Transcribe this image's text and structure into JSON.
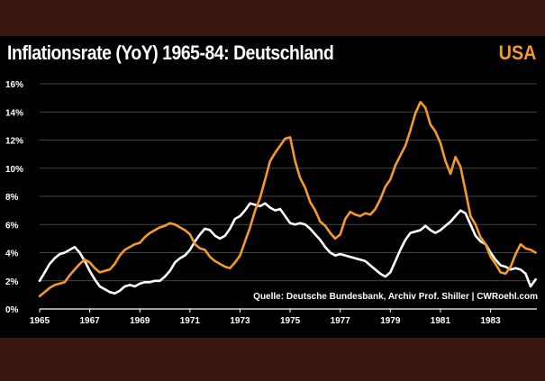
{
  "title": "Inflationsrate (YoY) 1965-84: Deutschland",
  "highlight_label": "USA",
  "source": "Quelle: Deutsche Bundesbank, Archiv Prof. Shiller | CWRoehl.com",
  "colors": {
    "background": "#3a1512",
    "panel": "#000000",
    "germany_line": "#ffffff",
    "usa_line": "#f39a2b",
    "grid": "#5a5a5a"
  },
  "chart_data": {
    "type": "line",
    "title": "Inflationsrate (YoY) 1965-84: Deutschland",
    "xlabel": "",
    "ylabel": "",
    "xlim": [
      1965,
      1984.85
    ],
    "ylim": [
      0,
      16
    ],
    "grid": true,
    "y_ticks": [
      "0%",
      "2%",
      "4%",
      "6%",
      "8%",
      "10%",
      "12%",
      "14%",
      "16%"
    ],
    "x_ticks": [
      "1965",
      "1967",
      "1969",
      "1971",
      "1973",
      "1975",
      "1977",
      "1979",
      "1981",
      "1983"
    ],
    "series": [
      {
        "name": "Deutschland",
        "color": "#ffffff",
        "points": [
          [
            1965.0,
            2.0
          ],
          [
            1965.2,
            2.6
          ],
          [
            1965.4,
            3.2
          ],
          [
            1965.6,
            3.6
          ],
          [
            1965.8,
            3.9
          ],
          [
            1966.0,
            4.0
          ],
          [
            1966.2,
            4.2
          ],
          [
            1966.4,
            4.4
          ],
          [
            1966.6,
            4.0
          ],
          [
            1966.8,
            3.4
          ],
          [
            1967.0,
            2.7
          ],
          [
            1967.2,
            2.1
          ],
          [
            1967.4,
            1.6
          ],
          [
            1967.6,
            1.4
          ],
          [
            1967.8,
            1.2
          ],
          [
            1968.0,
            1.1
          ],
          [
            1968.2,
            1.3
          ],
          [
            1968.4,
            1.6
          ],
          [
            1968.6,
            1.7
          ],
          [
            1968.8,
            1.6
          ],
          [
            1969.0,
            1.8
          ],
          [
            1969.2,
            1.9
          ],
          [
            1969.4,
            1.9
          ],
          [
            1969.6,
            2.0
          ],
          [
            1969.8,
            2.0
          ],
          [
            1970.0,
            2.3
          ],
          [
            1970.2,
            2.7
          ],
          [
            1970.4,
            3.3
          ],
          [
            1970.6,
            3.6
          ],
          [
            1970.8,
            3.8
          ],
          [
            1971.0,
            4.2
          ],
          [
            1971.2,
            4.8
          ],
          [
            1971.4,
            5.3
          ],
          [
            1971.6,
            5.7
          ],
          [
            1971.8,
            5.6
          ],
          [
            1972.0,
            5.2
          ],
          [
            1972.2,
            5.0
          ],
          [
            1972.4,
            5.2
          ],
          [
            1972.6,
            5.7
          ],
          [
            1972.8,
            6.4
          ],
          [
            1973.0,
            6.6
          ],
          [
            1973.2,
            7.0
          ],
          [
            1973.4,
            7.5
          ],
          [
            1973.6,
            7.4
          ],
          [
            1973.8,
            7.3
          ],
          [
            1974.0,
            7.5
          ],
          [
            1974.2,
            7.2
          ],
          [
            1974.4,
            7.0
          ],
          [
            1974.6,
            7.1
          ],
          [
            1974.8,
            6.6
          ],
          [
            1975.0,
            6.1
          ],
          [
            1975.2,
            6.0
          ],
          [
            1975.4,
            6.1
          ],
          [
            1975.6,
            6.0
          ],
          [
            1975.8,
            5.7
          ],
          [
            1976.0,
            5.3
          ],
          [
            1976.2,
            4.9
          ],
          [
            1976.4,
            4.4
          ],
          [
            1976.6,
            4.0
          ],
          [
            1976.8,
            3.8
          ],
          [
            1977.0,
            3.9
          ],
          [
            1977.2,
            3.8
          ],
          [
            1977.4,
            3.7
          ],
          [
            1977.6,
            3.6
          ],
          [
            1977.8,
            3.5
          ],
          [
            1978.0,
            3.4
          ],
          [
            1978.2,
            3.1
          ],
          [
            1978.4,
            2.8
          ],
          [
            1978.6,
            2.5
          ],
          [
            1978.8,
            2.3
          ],
          [
            1979.0,
            2.6
          ],
          [
            1979.2,
            3.4
          ],
          [
            1979.4,
            4.2
          ],
          [
            1979.6,
            4.9
          ],
          [
            1979.8,
            5.4
          ],
          [
            1980.0,
            5.5
          ],
          [
            1980.2,
            5.6
          ],
          [
            1980.4,
            5.9
          ],
          [
            1980.6,
            5.6
          ],
          [
            1980.8,
            5.4
          ],
          [
            1981.0,
            5.6
          ],
          [
            1981.2,
            5.9
          ],
          [
            1981.4,
            6.2
          ],
          [
            1981.6,
            6.6
          ],
          [
            1981.8,
            7.0
          ],
          [
            1982.0,
            6.8
          ],
          [
            1982.2,
            6.0
          ],
          [
            1982.4,
            5.2
          ],
          [
            1982.6,
            4.8
          ],
          [
            1982.8,
            4.6
          ],
          [
            1983.0,
            4.0
          ],
          [
            1983.2,
            3.5
          ],
          [
            1983.4,
            3.1
          ],
          [
            1983.6,
            3.0
          ],
          [
            1983.8,
            2.8
          ],
          [
            1984.0,
            2.9
          ],
          [
            1984.2,
            2.8
          ],
          [
            1984.4,
            2.5
          ],
          [
            1984.6,
            1.6
          ],
          [
            1984.8,
            2.1
          ]
        ]
      },
      {
        "name": "USA",
        "color": "#f39a2b",
        "points": [
          [
            1965.0,
            0.9
          ],
          [
            1965.2,
            1.2
          ],
          [
            1965.4,
            1.5
          ],
          [
            1965.6,
            1.7
          ],
          [
            1965.8,
            1.8
          ],
          [
            1966.0,
            1.9
          ],
          [
            1966.2,
            2.4
          ],
          [
            1966.4,
            2.8
          ],
          [
            1966.6,
            3.2
          ],
          [
            1966.8,
            3.5
          ],
          [
            1967.0,
            3.3
          ],
          [
            1967.2,
            2.9
          ],
          [
            1967.4,
            2.6
          ],
          [
            1967.6,
            2.7
          ],
          [
            1967.8,
            2.8
          ],
          [
            1968.0,
            3.2
          ],
          [
            1968.2,
            3.8
          ],
          [
            1968.4,
            4.2
          ],
          [
            1968.6,
            4.4
          ],
          [
            1968.8,
            4.6
          ],
          [
            1969.0,
            4.7
          ],
          [
            1969.2,
            5.1
          ],
          [
            1969.4,
            5.4
          ],
          [
            1969.6,
            5.6
          ],
          [
            1969.8,
            5.8
          ],
          [
            1970.0,
            5.9
          ],
          [
            1970.2,
            6.1
          ],
          [
            1970.4,
            6.0
          ],
          [
            1970.6,
            5.8
          ],
          [
            1970.8,
            5.6
          ],
          [
            1971.0,
            5.3
          ],
          [
            1971.2,
            4.6
          ],
          [
            1971.4,
            4.3
          ],
          [
            1971.6,
            4.2
          ],
          [
            1971.8,
            3.7
          ],
          [
            1972.0,
            3.4
          ],
          [
            1972.2,
            3.2
          ],
          [
            1972.4,
            3.0
          ],
          [
            1972.6,
            2.9
          ],
          [
            1972.8,
            3.3
          ],
          [
            1973.0,
            3.8
          ],
          [
            1973.2,
            4.8
          ],
          [
            1973.4,
            5.8
          ],
          [
            1973.6,
            7.0
          ],
          [
            1973.8,
            7.9
          ],
          [
            1974.0,
            9.2
          ],
          [
            1974.2,
            10.5
          ],
          [
            1974.4,
            11.1
          ],
          [
            1974.6,
            11.6
          ],
          [
            1974.8,
            12.1
          ],
          [
            1975.0,
            12.2
          ],
          [
            1975.2,
            10.5
          ],
          [
            1975.4,
            9.3
          ],
          [
            1975.6,
            8.6
          ],
          [
            1975.8,
            7.6
          ],
          [
            1976.0,
            7.0
          ],
          [
            1976.2,
            6.2
          ],
          [
            1976.4,
            5.9
          ],
          [
            1976.6,
            5.4
          ],
          [
            1976.8,
            5.0
          ],
          [
            1977.0,
            5.3
          ],
          [
            1977.2,
            6.4
          ],
          [
            1977.4,
            6.9
          ],
          [
            1977.6,
            6.7
          ],
          [
            1977.8,
            6.6
          ],
          [
            1978.0,
            6.8
          ],
          [
            1978.2,
            6.7
          ],
          [
            1978.4,
            7.1
          ],
          [
            1978.6,
            7.8
          ],
          [
            1978.8,
            8.7
          ],
          [
            1979.0,
            9.2
          ],
          [
            1979.2,
            10.2
          ],
          [
            1979.4,
            10.9
          ],
          [
            1979.6,
            11.6
          ],
          [
            1979.8,
            12.7
          ],
          [
            1980.0,
            13.9
          ],
          [
            1980.2,
            14.7
          ],
          [
            1980.4,
            14.3
          ],
          [
            1980.6,
            13.1
          ],
          [
            1980.8,
            12.6
          ],
          [
            1981.0,
            11.8
          ],
          [
            1981.2,
            10.5
          ],
          [
            1981.4,
            9.6
          ],
          [
            1981.6,
            10.8
          ],
          [
            1981.8,
            10.1
          ],
          [
            1982.0,
            8.4
          ],
          [
            1982.2,
            6.6
          ],
          [
            1982.4,
            6.0
          ],
          [
            1982.6,
            5.1
          ],
          [
            1982.8,
            4.6
          ],
          [
            1983.0,
            3.7
          ],
          [
            1983.2,
            3.2
          ],
          [
            1983.4,
            2.6
          ],
          [
            1983.6,
            2.5
          ],
          [
            1983.8,
            3.0
          ],
          [
            1984.0,
            3.9
          ],
          [
            1984.2,
            4.6
          ],
          [
            1984.4,
            4.3
          ],
          [
            1984.6,
            4.2
          ],
          [
            1984.8,
            4.0
          ]
        ]
      }
    ]
  }
}
